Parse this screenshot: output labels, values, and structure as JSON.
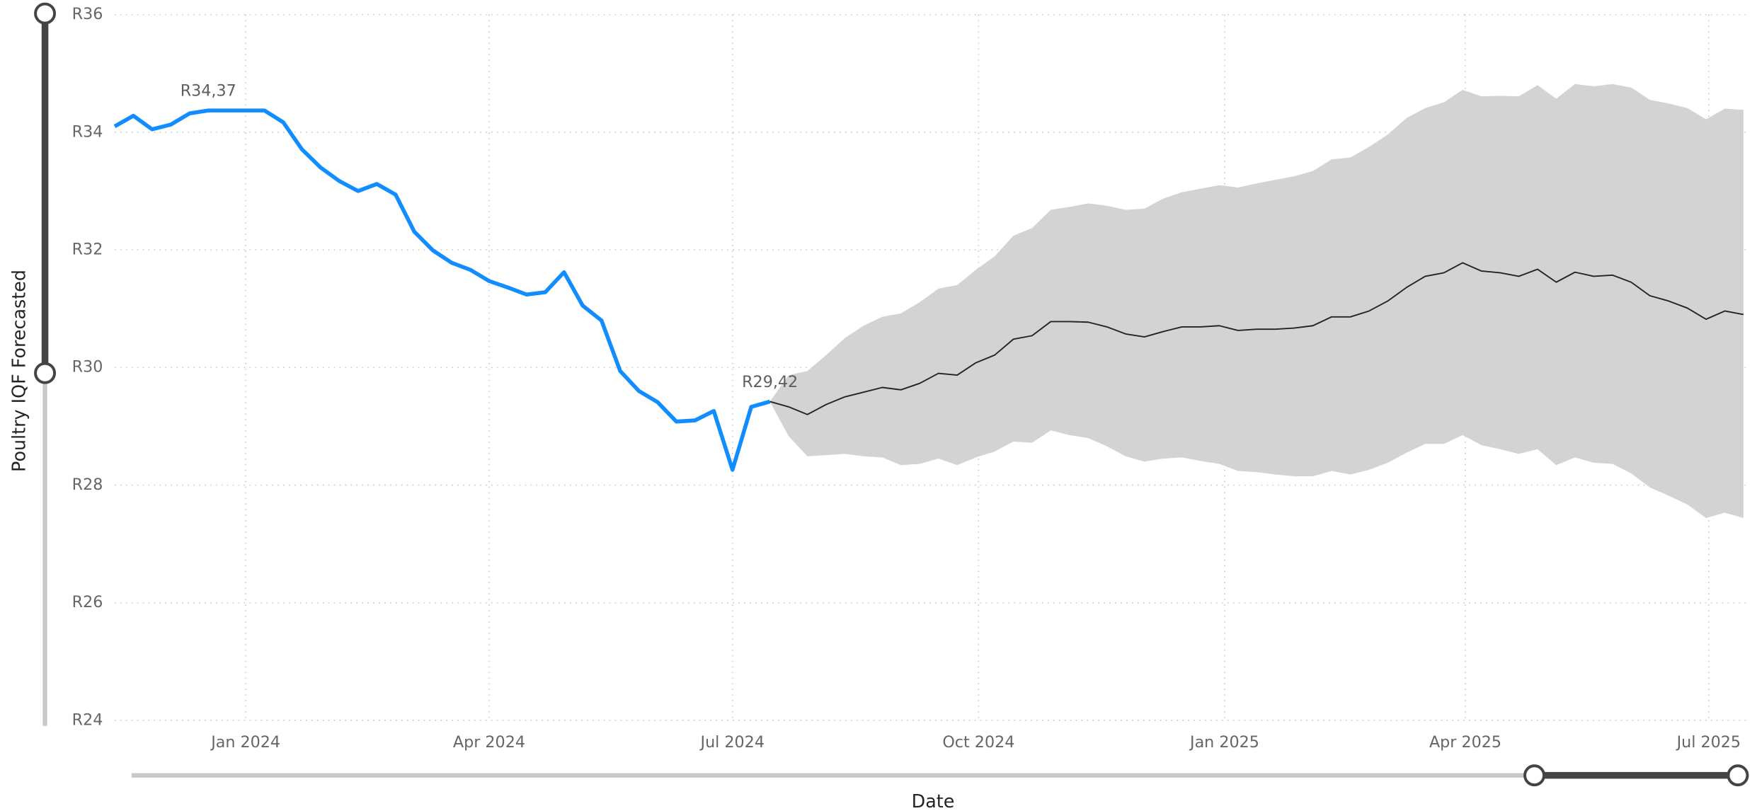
{
  "chart_data": {
    "type": "line",
    "ylabel": "Poultry IQF Forecasted",
    "xlabel": "Date",
    "ylim": [
      24,
      36
    ],
    "yticks": [
      {
        "value": 24,
        "label": "R24"
      },
      {
        "value": 26,
        "label": "R26"
      },
      {
        "value": 28,
        "label": "R28"
      },
      {
        "value": 30,
        "label": "R30"
      },
      {
        "value": 32,
        "label": "R32"
      },
      {
        "value": 34,
        "label": "R34"
      },
      {
        "value": 36,
        "label": "R36"
      }
    ],
    "xlim": [
      "2023-11-13",
      "2025-07-14"
    ],
    "xticks": [
      {
        "value": "2024-01",
        "label": "Jan 2024"
      },
      {
        "value": "2024-04",
        "label": "Apr 2024"
      },
      {
        "value": "2024-07",
        "label": "Jul 2024"
      },
      {
        "value": "2024-10",
        "label": "Oct 2024"
      },
      {
        "value": "2025-01",
        "label": "Jan 2025"
      },
      {
        "value": "2025-04",
        "label": "Apr 2025"
      },
      {
        "value": "2025-07",
        "label": "Jul 2025"
      }
    ],
    "grid": true,
    "series": [
      {
        "color": "#118dff",
        "x": [
          "2023-11-13",
          "2023-11-20",
          "2023-11-27",
          "2023-12-04",
          "2023-12-11",
          "2023-12-18",
          "2023-12-25",
          "2024-01-01",
          "2024-01-08",
          "2024-01-15",
          "2024-01-22",
          "2024-01-29",
          "2024-02-05",
          "2024-02-12",
          "2024-02-19",
          "2024-02-26",
          "2024-03-04",
          "2024-03-11",
          "2024-03-18",
          "2024-03-25",
          "2024-04-01",
          "2024-04-08",
          "2024-04-15",
          "2024-04-22",
          "2024-04-29",
          "2024-05-06",
          "2024-05-13",
          "2024-05-20",
          "2024-05-27",
          "2024-06-03",
          "2024-06-10",
          "2024-06-17",
          "2024-06-24",
          "2024-07-01",
          "2024-07-08",
          "2024-07-15"
        ],
        "values": [
          34.1,
          34.28,
          34.05,
          34.13,
          34.32,
          34.37,
          34.37,
          34.37,
          34.37,
          34.17,
          33.71,
          33.4,
          33.17,
          33.0,
          33.12,
          32.94,
          32.31,
          31.99,
          31.78,
          31.66,
          31.47,
          31.36,
          31.24,
          31.28,
          31.62,
          31.05,
          30.8,
          29.94,
          29.6,
          29.41,
          29.08,
          29.1,
          29.26,
          28.26,
          29.33,
          29.42
        ],
        "value_labels": [
          null,
          null,
          null,
          null,
          null,
          "R34,37",
          null,
          null,
          null,
          null,
          null,
          null,
          null,
          null,
          null,
          null,
          null,
          null,
          null,
          null,
          null,
          null,
          null,
          null,
          null,
          null,
          null,
          null,
          null,
          null,
          null,
          null,
          null,
          null,
          null,
          "R29,42"
        ]
      },
      {
        "color": "#252423",
        "band_color": "#d3d3d3",
        "x": [
          "2024-07-15",
          "2024-07-22",
          "2024-07-29",
          "2024-08-05",
          "2024-08-12",
          "2024-08-19",
          "2024-08-26",
          "2024-09-02",
          "2024-09-09",
          "2024-09-16",
          "2024-09-23",
          "2024-09-30",
          "2024-10-07",
          "2024-10-14",
          "2024-10-21",
          "2024-10-28",
          "2024-11-04",
          "2024-11-11",
          "2024-11-18",
          "2024-11-25",
          "2024-12-02",
          "2024-12-09",
          "2024-12-16",
          "2024-12-23",
          "2024-12-30",
          "2025-01-06",
          "2025-01-13",
          "2025-01-20",
          "2025-01-27",
          "2025-02-03",
          "2025-02-10",
          "2025-02-17",
          "2025-02-24",
          "2025-03-03",
          "2025-03-10",
          "2025-03-17",
          "2025-03-24",
          "2025-03-31",
          "2025-04-07",
          "2025-04-14",
          "2025-04-21",
          "2025-04-28",
          "2025-05-05",
          "2025-05-12",
          "2025-05-19",
          "2025-05-26",
          "2025-06-02",
          "2025-06-09",
          "2025-06-16",
          "2025-06-23",
          "2025-06-30",
          "2025-07-07",
          "2025-07-14"
        ],
        "values": [
          29.42,
          29.33,
          29.2,
          29.37,
          29.5,
          29.58,
          29.66,
          29.62,
          29.73,
          29.9,
          29.87,
          30.08,
          30.21,
          30.48,
          30.54,
          30.78,
          30.78,
          30.77,
          30.69,
          30.57,
          30.52,
          30.61,
          30.69,
          30.69,
          30.71,
          30.63,
          30.65,
          30.65,
          30.67,
          30.71,
          30.86,
          30.86,
          30.96,
          31.13,
          31.36,
          31.55,
          31.61,
          31.78,
          31.64,
          31.61,
          31.55,
          31.67,
          31.45,
          31.62,
          31.55,
          31.57,
          31.45,
          31.22,
          31.13,
          31.01,
          30.82,
          30.96,
          30.9
        ],
        "upper": [
          29.42,
          29.87,
          29.94,
          30.21,
          30.5,
          30.71,
          30.86,
          30.92,
          31.11,
          31.34,
          31.4,
          31.66,
          31.89,
          32.24,
          32.37,
          32.68,
          32.73,
          32.79,
          32.75,
          32.68,
          32.7,
          32.87,
          32.98,
          33.04,
          33.1,
          33.06,
          33.13,
          33.19,
          33.25,
          33.34,
          33.54,
          33.57,
          33.75,
          33.96,
          34.24,
          34.41,
          34.51,
          34.72,
          34.61,
          34.62,
          34.61,
          34.8,
          34.57,
          34.82,
          34.78,
          34.82,
          34.76,
          34.55,
          34.49,
          34.41,
          34.22,
          34.4,
          34.38
        ],
        "lower": [
          29.42,
          28.83,
          28.49,
          28.51,
          28.53,
          28.49,
          28.47,
          28.34,
          28.36,
          28.45,
          28.34,
          28.47,
          28.57,
          28.74,
          28.72,
          28.93,
          28.85,
          28.8,
          28.66,
          28.49,
          28.4,
          28.45,
          28.47,
          28.41,
          28.36,
          28.24,
          28.22,
          28.18,
          28.15,
          28.15,
          28.24,
          28.18,
          28.26,
          28.38,
          28.55,
          28.7,
          28.7,
          28.85,
          28.68,
          28.61,
          28.53,
          28.61,
          28.34,
          28.47,
          28.38,
          28.36,
          28.2,
          27.96,
          27.82,
          27.67,
          27.44,
          27.53,
          27.44
        ]
      }
    ]
  }
}
